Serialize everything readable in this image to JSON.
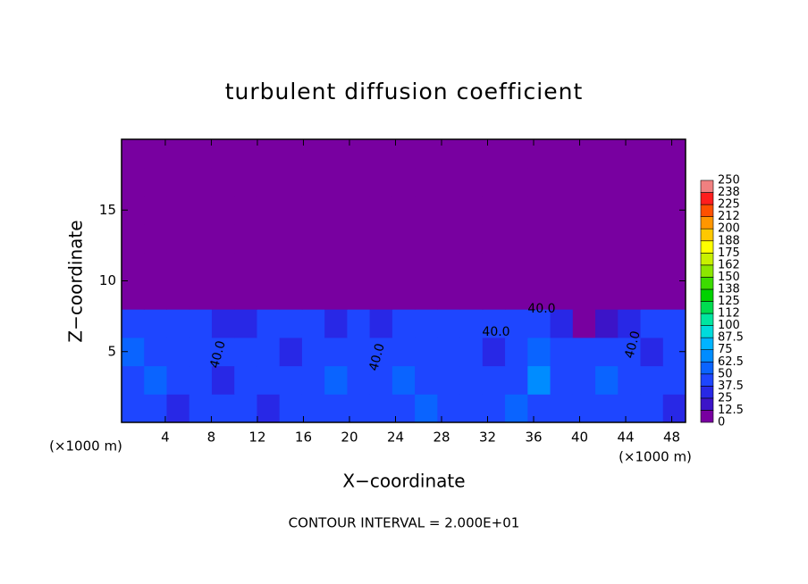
{
  "chart_data": {
    "type": "contour",
    "title": "turbulent diffusion coefficient",
    "x_label": "X−coordinate",
    "y_label": "Z−coordinate",
    "x_unit_label": "(×1000 m)",
    "y_unit_label": "(×1000 m)",
    "footer": "CONTOUR INTERVAL = 2.000E+01",
    "annotations": [
      "40.0",
      "40.0",
      "40.0",
      "40.0",
      "40.0"
    ],
    "xlim": [
      0.2,
      49.2
    ],
    "ylim": [
      0,
      20
    ],
    "xticks": [
      4,
      8,
      12,
      16,
      20,
      24,
      28,
      32,
      36,
      40,
      44,
      48
    ],
    "yticks": [
      5,
      10,
      15
    ],
    "colorbar": {
      "levels": [
        0,
        12.5,
        25,
        37.5,
        50,
        62.5,
        75,
        87.5,
        100,
        112,
        125,
        138,
        150,
        162,
        175,
        188,
        200,
        212,
        225,
        238,
        250
      ],
      "colors": [
        "#7800a0",
        "#3c14c8",
        "#2828e6",
        "#1e46ff",
        "#0a64ff",
        "#008cff",
        "#00b4ff",
        "#00dcdc",
        "#00e6a0",
        "#00dc50",
        "#00d200",
        "#3cdc00",
        "#8ce600",
        "#c8f000",
        "#ffff00",
        "#ffc800",
        "#ff9600",
        "#ff5000",
        "#ff1e1e",
        "#f08080"
      ]
    },
    "field": {
      "values": [
        [
          40,
          38,
          30,
          45,
          40,
          40,
          35,
          40,
          40,
          40,
          40,
          45,
          40,
          50,
          45,
          40,
          40,
          55,
          40,
          45,
          40,
          45,
          40,
          40,
          35
        ],
        [
          45,
          55,
          40,
          40,
          35,
          40,
          40,
          45,
          40,
          50,
          40,
          40,
          60,
          45,
          40,
          40,
          40,
          40,
          70,
          40,
          40,
          60,
          40,
          45,
          40
        ],
        [
          50,
          40,
          45,
          40,
          40,
          45,
          40,
          35,
          40,
          45,
          40,
          40,
          45,
          40,
          40,
          40,
          35,
          40,
          60,
          40,
          45,
          40,
          40,
          35,
          40
        ],
        [
          40,
          45,
          40,
          40,
          30,
          35,
          40,
          40,
          40,
          35,
          40,
          25,
          40,
          40,
          40,
          40,
          45,
          40,
          40,
          25,
          10,
          15,
          30,
          40,
          45
        ],
        [
          10,
          5,
          5,
          5,
          5,
          0,
          0,
          0,
          0,
          0,
          0,
          0,
          0,
          0,
          0,
          0,
          0,
          5,
          5,
          0,
          0,
          0,
          0,
          5,
          5
        ],
        [
          0,
          0,
          0,
          0,
          0,
          0,
          0,
          0,
          0,
          0,
          0,
          0,
          0,
          0,
          0,
          0,
          0,
          0,
          0,
          0,
          0,
          0,
          0,
          0,
          0
        ],
        [
          0,
          0,
          0,
          0,
          0,
          0,
          0,
          0,
          0,
          0,
          0,
          0,
          0,
          0,
          0,
          0,
          0,
          0,
          0,
          0,
          0,
          0,
          0,
          0,
          0
        ],
        [
          0,
          0,
          0,
          0,
          0,
          0,
          0,
          0,
          0,
          0,
          0,
          0,
          0,
          0,
          0,
          0,
          0,
          0,
          0,
          0,
          0,
          0,
          0,
          0,
          0
        ],
        [
          0,
          0,
          0,
          0,
          0,
          0,
          0,
          0,
          0,
          0,
          0,
          0,
          0,
          0,
          0,
          0,
          0,
          0,
          0,
          0,
          0,
          0,
          0,
          0,
          0
        ],
        [
          0,
          0,
          0,
          0,
          0,
          0,
          0,
          0,
          0,
          0,
          0,
          0,
          0,
          0,
          0,
          0,
          0,
          0,
          0,
          0,
          0,
          0,
          0,
          0,
          0
        ]
      ]
    }
  }
}
